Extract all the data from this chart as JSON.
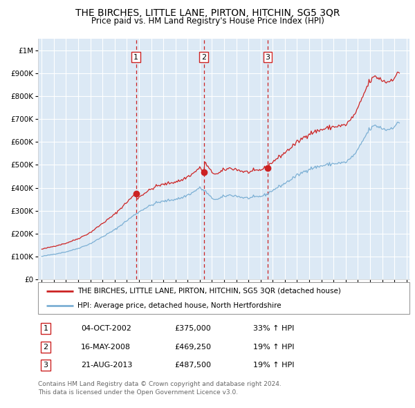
{
  "title": "THE BIRCHES, LITTLE LANE, PIRTON, HITCHIN, SG5 3QR",
  "subtitle": "Price paid vs. HM Land Registry's House Price Index (HPI)",
  "background_color": "#dce9f5",
  "plot_bg": "#dce9f5",
  "grid_color": "#ffffff",
  "sale_labels": [
    "1",
    "2",
    "3"
  ],
  "legend_line1": "THE BIRCHES, LITTLE LANE, PIRTON, HITCHIN, SG5 3QR (detached house)",
  "legend_line2": "HPI: Average price, detached house, North Hertfordshire",
  "table_rows": [
    [
      "1",
      "04-OCT-2002",
      "£375,000",
      "33% ↑ HPI"
    ],
    [
      "2",
      "16-MAY-2008",
      "£469,250",
      "19% ↑ HPI"
    ],
    [
      "3",
      "21-AUG-2013",
      "£487,500",
      "19% ↑ HPI"
    ]
  ],
  "footer": "Contains HM Land Registry data © Crown copyright and database right 2024.\nThis data is licensed under the Open Government Licence v3.0.",
  "hpi_color": "#7bafd4",
  "price_color": "#cc2222",
  "ylim": [
    0,
    1050000
  ],
  "yticks": [
    0,
    100000,
    200000,
    300000,
    400000,
    500000,
    600000,
    700000,
    800000,
    900000,
    1000000
  ],
  "ytick_labels": [
    "£0",
    "£100K",
    "£200K",
    "£300K",
    "£400K",
    "£500K",
    "£600K",
    "£700K",
    "£800K",
    "£900K",
    "£1M"
  ]
}
